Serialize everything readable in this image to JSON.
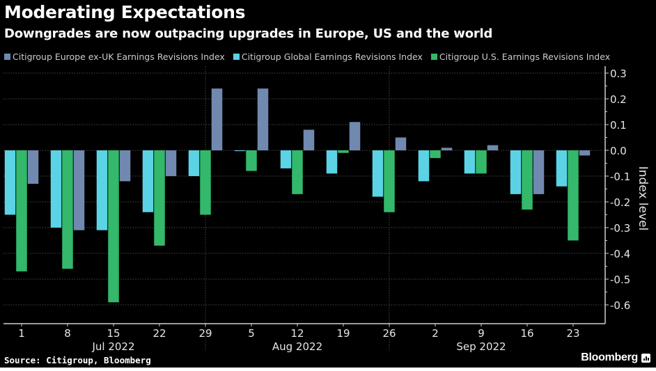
{
  "header": {
    "title": "Moderating Expectations",
    "subtitle": "Downgrades are now outpacing upgrades in Europe, US and the world"
  },
  "footer": {
    "source": "Source: Citigroup, Bloomberg",
    "brand": "Bloomberg"
  },
  "chart_data": {
    "type": "bar",
    "title": "Moderating Expectations",
    "subtitle": "Downgrades are now outpacing upgrades in Europe, US and the world",
    "xlabel": "",
    "ylabel": "Index level",
    "ylim": [
      -0.65,
      0.33
    ],
    "yticks": [
      0.3,
      0.2,
      0.1,
      0.0,
      -0.1,
      -0.2,
      -0.3,
      -0.4,
      -0.5,
      -0.6
    ],
    "ytick_labels": [
      "0.3",
      "0.2",
      "0.1",
      "0.0",
      "-0.1",
      "-0.2",
      "-0.3",
      "-0.4",
      "-0.5",
      "-0.6"
    ],
    "y_axis_side": "right",
    "grid": true,
    "legend_position": "top-left",
    "categories": [
      "1",
      "8",
      "15",
      "22",
      "29",
      "5",
      "12",
      "19",
      "26",
      "2",
      "9",
      "16",
      "23"
    ],
    "month_labels": [
      {
        "label": "Jul 2022",
        "start": 0,
        "end": 4
      },
      {
        "label": "Aug 2022",
        "start": 4,
        "end": 8
      },
      {
        "label": "Sep 2022",
        "start": 8,
        "end": 12
      }
    ],
    "series": [
      {
        "name": "Citigroup Global Earnings Revisions Index",
        "color": "#5bd3e5",
        "values": [
          -0.25,
          -0.3,
          -0.31,
          -0.24,
          -0.1,
          -0.003,
          -0.07,
          -0.09,
          -0.18,
          -0.12,
          -0.09,
          -0.17,
          -0.14
        ]
      },
      {
        "name": "Citigroup U.S. Earnings Revisions Index",
        "color": "#34b86b",
        "values": [
          -0.47,
          -0.46,
          -0.59,
          -0.37,
          -0.25,
          -0.08,
          -0.17,
          -0.01,
          -0.24,
          -0.03,
          -0.09,
          -0.23,
          -0.35
        ]
      },
      {
        "name": "Citigroup Europe ex-UK Earnings Revisions Index",
        "color": "#7189b0",
        "values": [
          -0.13,
          -0.31,
          -0.12,
          -0.1,
          0.24,
          0.24,
          0.08,
          0.11,
          0.05,
          0.01,
          0.02,
          -0.17,
          -0.02
        ]
      }
    ],
    "legend": [
      {
        "name": "Citigroup Europe ex-UK Earnings Revisions Index",
        "color": "#7189b0"
      },
      {
        "name": "Citigroup Global Earnings Revisions Index",
        "color": "#5bd3e5"
      },
      {
        "name": "Citigroup U.S. Earnings Revisions Index",
        "color": "#34b86b"
      }
    ]
  }
}
